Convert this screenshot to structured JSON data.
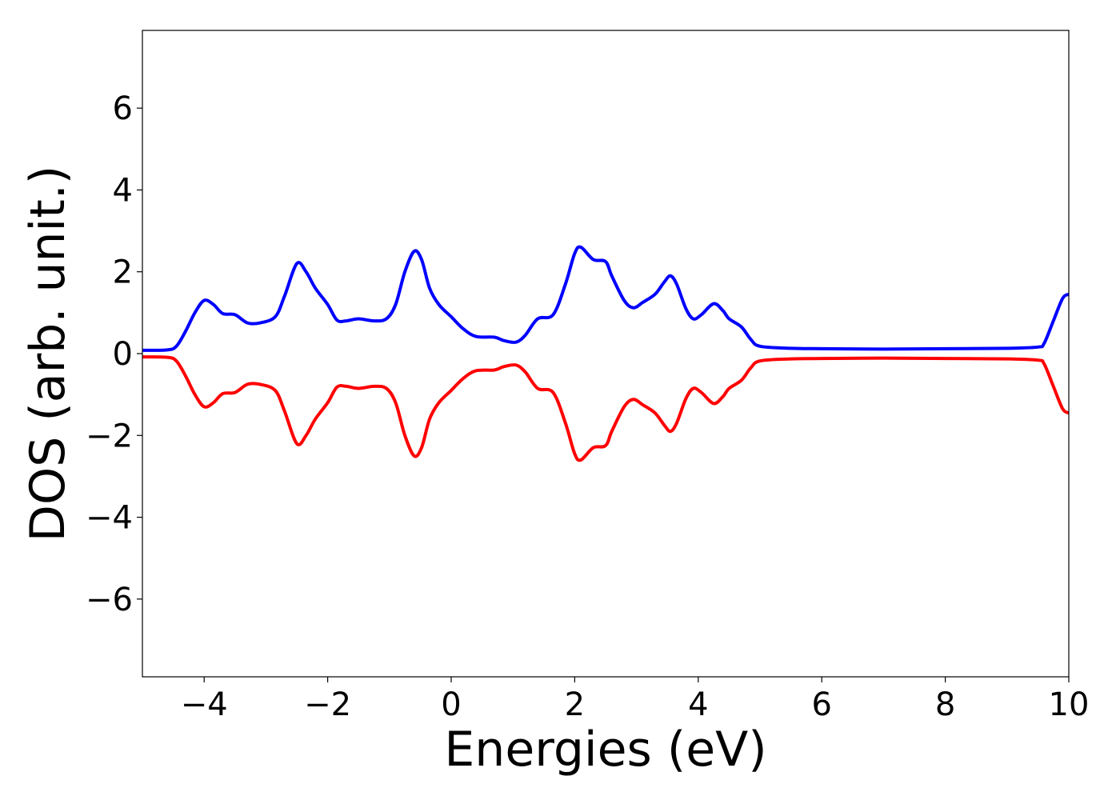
{
  "chart_data": {
    "type": "line",
    "title": "",
    "xlabel": "Energies (eV)",
    "ylabel": "DOS (arb. unit.)",
    "xlim": [
      -5,
      10
    ],
    "ylim": [
      -7.9,
      7.9
    ],
    "xticks": [
      {
        "value": -4,
        "label": "−4"
      },
      {
        "value": -2,
        "label": "−2"
      },
      {
        "value": 0,
        "label": "0"
      },
      {
        "value": 2,
        "label": "2"
      },
      {
        "value": 4,
        "label": "4"
      },
      {
        "value": 6,
        "label": "6"
      },
      {
        "value": 8,
        "label": "8"
      },
      {
        "value": 10,
        "label": "10"
      }
    ],
    "yticks": [
      {
        "value": -6,
        "label": "−6"
      },
      {
        "value": -4,
        "label": "−4"
      },
      {
        "value": -2,
        "label": "−2"
      },
      {
        "value": 0,
        "label": "0"
      },
      {
        "value": 2,
        "label": "2"
      },
      {
        "value": 4,
        "label": "4"
      },
      {
        "value": 6,
        "label": "6"
      }
    ],
    "grid": false,
    "legend": "none",
    "series": [
      {
        "color": "#0000ff",
        "points": [
          [
            -5.0,
            0.08
          ],
          [
            -4.6,
            0.09
          ],
          [
            -4.45,
            0.18
          ],
          [
            -4.3,
            0.55
          ],
          [
            -4.15,
            1.0
          ],
          [
            -4.0,
            1.3
          ],
          [
            -3.85,
            1.2
          ],
          [
            -3.7,
            0.98
          ],
          [
            -3.5,
            0.95
          ],
          [
            -3.3,
            0.75
          ],
          [
            -3.1,
            0.75
          ],
          [
            -2.85,
            0.9
          ],
          [
            -2.7,
            1.4
          ],
          [
            -2.5,
            2.2
          ],
          [
            -2.35,
            2.0
          ],
          [
            -2.2,
            1.6
          ],
          [
            -2.0,
            1.2
          ],
          [
            -1.85,
            0.82
          ],
          [
            -1.7,
            0.8
          ],
          [
            -1.5,
            0.85
          ],
          [
            -1.25,
            0.8
          ],
          [
            -1.05,
            0.85
          ],
          [
            -0.9,
            1.2
          ],
          [
            -0.75,
            2.0
          ],
          [
            -0.6,
            2.5
          ],
          [
            -0.48,
            2.3
          ],
          [
            -0.35,
            1.6
          ],
          [
            -0.2,
            1.2
          ],
          [
            0.0,
            0.9
          ],
          [
            0.2,
            0.6
          ],
          [
            0.4,
            0.42
          ],
          [
            0.7,
            0.4
          ],
          [
            0.85,
            0.32
          ],
          [
            1.05,
            0.28
          ],
          [
            1.2,
            0.45
          ],
          [
            1.4,
            0.85
          ],
          [
            1.65,
            0.95
          ],
          [
            1.85,
            1.7
          ],
          [
            2.0,
            2.45
          ],
          [
            2.1,
            2.6
          ],
          [
            2.3,
            2.3
          ],
          [
            2.5,
            2.25
          ],
          [
            2.6,
            1.9
          ],
          [
            2.8,
            1.3
          ],
          [
            2.95,
            1.12
          ],
          [
            3.1,
            1.25
          ],
          [
            3.3,
            1.45
          ],
          [
            3.45,
            1.75
          ],
          [
            3.55,
            1.9
          ],
          [
            3.65,
            1.7
          ],
          [
            3.8,
            1.1
          ],
          [
            3.92,
            0.85
          ],
          [
            4.05,
            0.95
          ],
          [
            4.25,
            1.22
          ],
          [
            4.4,
            1.05
          ],
          [
            4.5,
            0.85
          ],
          [
            4.7,
            0.65
          ],
          [
            4.85,
            0.35
          ],
          [
            5.0,
            0.18
          ],
          [
            5.5,
            0.13
          ],
          [
            6.0,
            0.12
          ],
          [
            7.0,
            0.11
          ],
          [
            8.0,
            0.12
          ],
          [
            9.0,
            0.13
          ],
          [
            9.5,
            0.16
          ],
          [
            9.6,
            0.25
          ],
          [
            9.75,
            0.8
          ],
          [
            9.9,
            1.35
          ],
          [
            10.0,
            1.45
          ]
        ]
      },
      {
        "color": "#ff0000",
        "points": [
          [
            -5.0,
            -0.08
          ],
          [
            -4.6,
            -0.09
          ],
          [
            -4.45,
            -0.18
          ],
          [
            -4.3,
            -0.55
          ],
          [
            -4.15,
            -1.0
          ],
          [
            -4.0,
            -1.3
          ],
          [
            -3.85,
            -1.2
          ],
          [
            -3.7,
            -0.98
          ],
          [
            -3.5,
            -0.95
          ],
          [
            -3.3,
            -0.75
          ],
          [
            -3.1,
            -0.75
          ],
          [
            -2.85,
            -0.9
          ],
          [
            -2.7,
            -1.4
          ],
          [
            -2.5,
            -2.2
          ],
          [
            -2.35,
            -2.0
          ],
          [
            -2.2,
            -1.6
          ],
          [
            -2.0,
            -1.2
          ],
          [
            -1.85,
            -0.82
          ],
          [
            -1.7,
            -0.8
          ],
          [
            -1.5,
            -0.85
          ],
          [
            -1.25,
            -0.8
          ],
          [
            -1.05,
            -0.85
          ],
          [
            -0.9,
            -1.2
          ],
          [
            -0.75,
            -2.0
          ],
          [
            -0.6,
            -2.5
          ],
          [
            -0.48,
            -2.3
          ],
          [
            -0.35,
            -1.6
          ],
          [
            -0.2,
            -1.2
          ],
          [
            0.0,
            -0.9
          ],
          [
            0.2,
            -0.6
          ],
          [
            0.4,
            -0.42
          ],
          [
            0.7,
            -0.4
          ],
          [
            0.85,
            -0.32
          ],
          [
            1.05,
            -0.28
          ],
          [
            1.2,
            -0.45
          ],
          [
            1.4,
            -0.85
          ],
          [
            1.65,
            -0.95
          ],
          [
            1.85,
            -1.7
          ],
          [
            2.0,
            -2.45
          ],
          [
            2.1,
            -2.6
          ],
          [
            2.3,
            -2.3
          ],
          [
            2.5,
            -2.25
          ],
          [
            2.6,
            -1.9
          ],
          [
            2.8,
            -1.3
          ],
          [
            2.95,
            -1.12
          ],
          [
            3.1,
            -1.25
          ],
          [
            3.3,
            -1.45
          ],
          [
            3.45,
            -1.75
          ],
          [
            3.55,
            -1.9
          ],
          [
            3.65,
            -1.7
          ],
          [
            3.8,
            -1.1
          ],
          [
            3.92,
            -0.85
          ],
          [
            4.05,
            -0.95
          ],
          [
            4.25,
            -1.22
          ],
          [
            4.4,
            -1.05
          ],
          [
            4.5,
            -0.85
          ],
          [
            4.7,
            -0.65
          ],
          [
            4.85,
            -0.35
          ],
          [
            5.0,
            -0.18
          ],
          [
            5.5,
            -0.13
          ],
          [
            6.0,
            -0.12
          ],
          [
            7.0,
            -0.11
          ],
          [
            8.0,
            -0.12
          ],
          [
            9.0,
            -0.13
          ],
          [
            9.5,
            -0.16
          ],
          [
            9.6,
            -0.25
          ],
          [
            9.75,
            -0.8
          ],
          [
            9.9,
            -1.35
          ],
          [
            10.0,
            -1.45
          ]
        ]
      }
    ]
  }
}
